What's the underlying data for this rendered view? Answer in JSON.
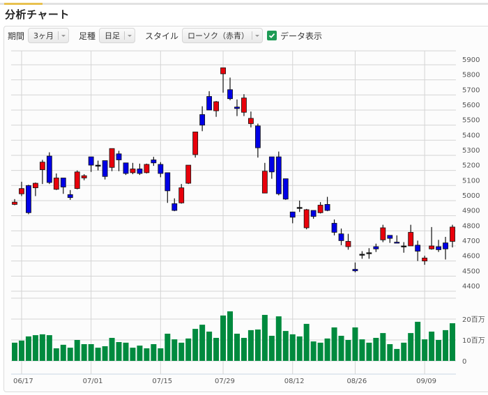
{
  "page": {
    "title": "分析チャート"
  },
  "toolbar": {
    "period_label": "期間",
    "period_value": "3ヶ月",
    "bar_type_label": "足種",
    "bar_type_value": "日足",
    "style_label": "スタイル",
    "style_value": "ローソク（赤青）",
    "show_data_label": "データ表示",
    "show_data_checked": true
  },
  "colors": {
    "up": "#e8000b",
    "down": "#0000e6",
    "volume": "#008a3e",
    "grid": "#d4d4d4",
    "accent": "#e8c14f",
    "checkbox": "#1d9b55"
  },
  "chart_data": [
    {
      "type": "candlestick",
      "title": "",
      "ylabel": "",
      "ylim": [
        4360,
        6000
      ],
      "yticks": [
        4400,
        4500,
        4600,
        4700,
        4800,
        4900,
        5000,
        5100,
        5200,
        5300,
        5400,
        5500,
        5600,
        5700,
        5800,
        5900
      ],
      "xtick_labels": [
        "06/17",
        "07/01",
        "07/15",
        "07/29",
        "08/12",
        "08/26",
        "09/09"
      ],
      "xtick_index": [
        1,
        11,
        21,
        30,
        40,
        49,
        59
      ],
      "grid": true,
      "up_color_meaning": "red = close > open, blue = close < open",
      "ohlc": [
        [
          4975,
          5010,
          4970,
          4990
        ],
        [
          5045,
          5125,
          5030,
          5080
        ],
        [
          5100,
          5105,
          4910,
          4920
        ],
        [
          5085,
          5120,
          5030,
          5115
        ],
        [
          5205,
          5270,
          5110,
          5255
        ],
        [
          5295,
          5320,
          5110,
          5120
        ],
        [
          5075,
          5180,
          5070,
          5150
        ],
        [
          5150,
          5150,
          5045,
          5090
        ],
        [
          5040,
          5070,
          5005,
          5020
        ],
        [
          5080,
          5200,
          5075,
          5190
        ],
        [
          5150,
          5175,
          5135,
          5165
        ],
        [
          5290,
          5290,
          5190,
          5235
        ],
        [
          5235,
          5265,
          5200,
          5235
        ],
        [
          5265,
          5265,
          5140,
          5160
        ],
        [
          5220,
          5345,
          5195,
          5345
        ],
        [
          5310,
          5330,
          5195,
          5270
        ],
        [
          5250,
          5250,
          5170,
          5180
        ],
        [
          5185,
          5250,
          5175,
          5210
        ],
        [
          5210,
          5245,
          5170,
          5180
        ],
        [
          5185,
          5245,
          5180,
          5240
        ],
        [
          5270,
          5290,
          5230,
          5250
        ],
        [
          5240,
          5255,
          5155,
          5180
        ],
        [
          5185,
          5185,
          4985,
          5065
        ],
        [
          4980,
          5015,
          4930,
          4935
        ],
        [
          4985,
          5110,
          4980,
          5085
        ],
        [
          5115,
          5235,
          5110,
          5235
        ],
        [
          5305,
          5455,
          5285,
          5455
        ],
        [
          5570,
          5625,
          5460,
          5500
        ],
        [
          5690,
          5725,
          5600,
          5600
        ],
        [
          5595,
          5660,
          5555,
          5655
        ],
        [
          5840,
          5880,
          5715,
          5880
        ],
        [
          5735,
          5815,
          5665,
          5675
        ],
        [
          5620,
          5670,
          5560,
          5610
        ],
        [
          5585,
          5705,
          5560,
          5680
        ],
        [
          5510,
          5590,
          5485,
          5545
        ],
        [
          5495,
          5510,
          5285,
          5350
        ],
        [
          5050,
          5250,
          5050,
          5195
        ],
        [
          5290,
          5290,
          5145,
          5190
        ],
        [
          5290,
          5325,
          5035,
          5045
        ],
        [
          5145,
          5145,
          5005,
          5010
        ],
        [
          4925,
          4925,
          4850,
          4890
        ],
        [
          4955,
          5000,
          4925,
          4955
        ],
        [
          4820,
          4945,
          4810,
          4940
        ],
        [
          4935,
          4935,
          4880,
          4895
        ],
        [
          4920,
          4990,
          4915,
          4970
        ],
        [
          4975,
          5025,
          4930,
          4935
        ],
        [
          4850,
          4875,
          4770,
          4790
        ],
        [
          4780,
          4815,
          4705,
          4735
        ],
        [
          4695,
          4780,
          4675,
          4730
        ],
        [
          4545,
          4590,
          4525,
          4535
        ],
        [
          4645,
          4665,
          4615,
          4645
        ],
        [
          4655,
          4685,
          4615,
          4655
        ],
        [
          4695,
          4715,
          4660,
          4680
        ],
        [
          4740,
          4840,
          4725,
          4820
        ],
        [
          4770,
          4770,
          4720,
          4750
        ],
        [
          4725,
          4770,
          4720,
          4720
        ],
        [
          4700,
          4725,
          4655,
          4700
        ],
        [
          4700,
          4840,
          4700,
          4790
        ],
        [
          4705,
          4735,
          4600,
          4665
        ],
        [
          4600,
          4635,
          4575,
          4620
        ],
        [
          4680,
          4825,
          4675,
          4700
        ],
        [
          4695,
          4740,
          4660,
          4675
        ],
        [
          4720,
          4760,
          4610,
          4680
        ],
        [
          4730,
          4840,
          4690,
          4825
        ]
      ]
    },
    {
      "type": "bar",
      "title": "",
      "ylabel": "",
      "unit": "百万",
      "ylim": [
        0,
        25
      ],
      "yticks": [
        0,
        10,
        20
      ],
      "ytick_labels": [
        "0",
        "10百万",
        "20百万"
      ],
      "grid": true,
      "values": [
        8.7,
        9.7,
        11.7,
        12.3,
        12.7,
        12.3,
        6.0,
        7.7,
        6.3,
        10.0,
        8.0,
        8.0,
        6.3,
        7.0,
        11.0,
        9.0,
        8.7,
        6.3,
        7.3,
        6.0,
        8.0,
        6.0,
        13.0,
        10.3,
        8.7,
        10.7,
        15.3,
        17.3,
        14.0,
        11.0,
        21.7,
        23.7,
        13.0,
        11.0,
        14.7,
        15.0,
        22.0,
        12.0,
        21.3,
        14.3,
        12.7,
        11.7,
        17.7,
        9.3,
        8.7,
        10.7,
        16.0,
        12.0,
        10.0,
        16.0,
        10.3,
        8.7,
        11.0,
        13.3,
        8.0,
        5.7,
        8.7,
        13.3,
        18.7,
        10.3,
        14.0,
        10.0,
        14.7,
        18.0
      ]
    }
  ]
}
